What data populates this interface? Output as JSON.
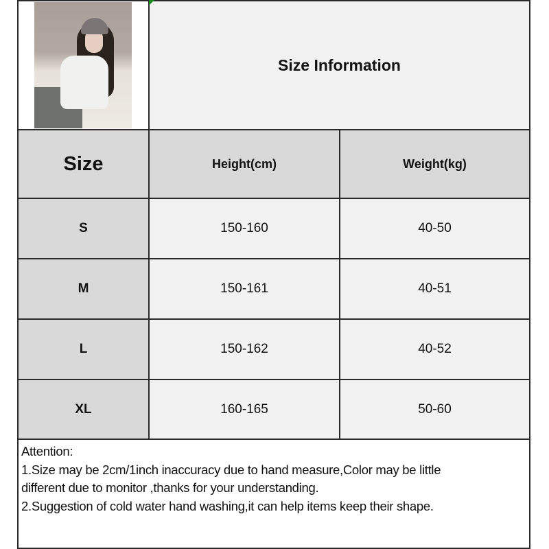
{
  "title": "Size Information",
  "table": {
    "headers": [
      "Size",
      "Height(cm)",
      "Weight(kg)"
    ],
    "rows": [
      {
        "size": "S",
        "height": "150-160",
        "weight": "40-50"
      },
      {
        "size": "M",
        "height": "150-161",
        "weight": "40-51"
      },
      {
        "size": "L",
        "height": "150-162",
        "weight": "40-52"
      },
      {
        "size": "XL",
        "height": "160-165",
        "weight": "50-60"
      }
    ]
  },
  "notes": {
    "heading": "Attention:",
    "line1a": "1.Size may be 2cm/1inch inaccuracy due to hand measure,Color may be little",
    "line1b": "different due to monitor ,thanks for your understanding.",
    "line2": "2.Suggestion of cold water hand washing,it can help items keep their shape."
  },
  "colors": {
    "header_gray": "#d9d9d9",
    "cell_light": "#f2f2f2",
    "border": "#2a2a2a"
  }
}
